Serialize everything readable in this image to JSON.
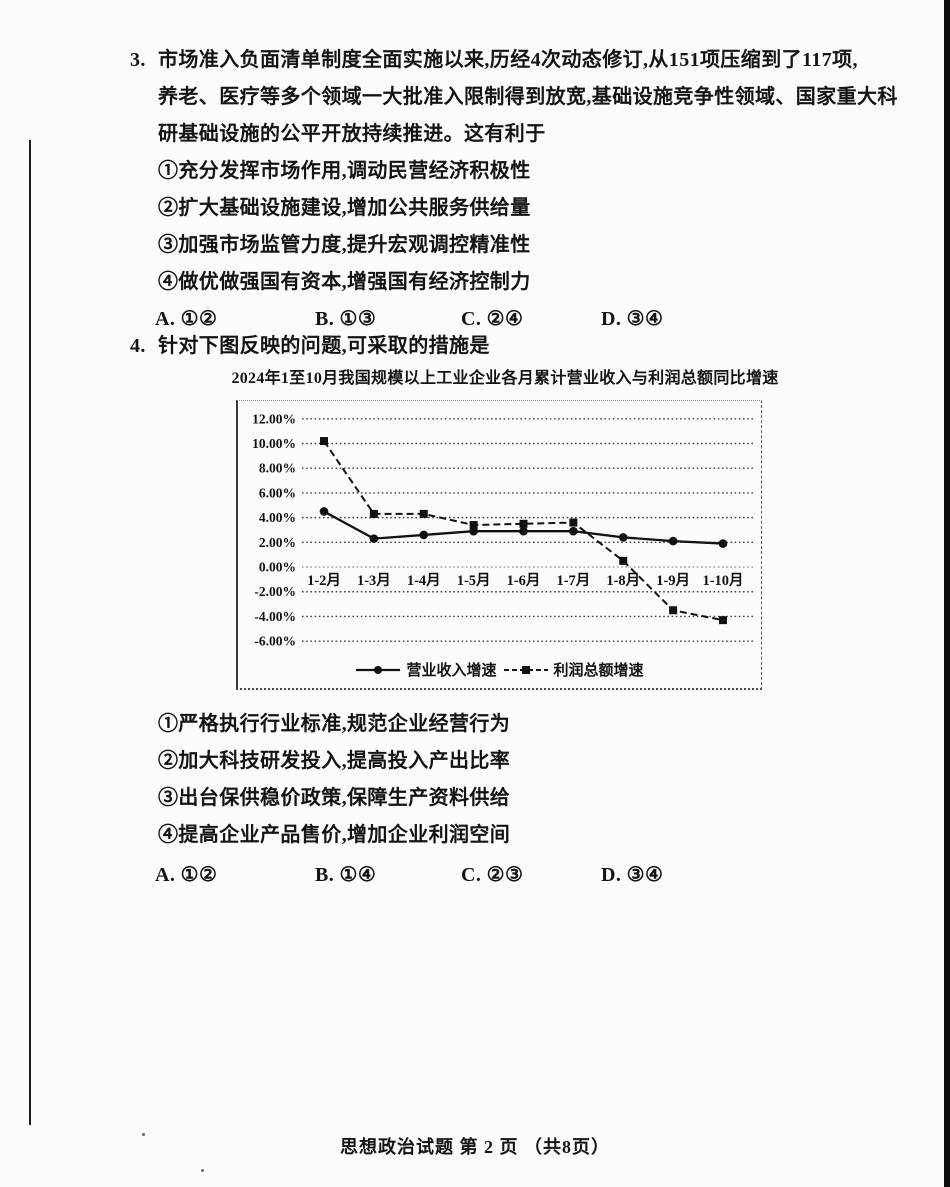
{
  "page": {
    "footer": "思想政治试题 第 2 页 （共8页）"
  },
  "questions": [
    {
      "number": "3.",
      "stem_lines": [
        "市场准入负面清单制度全面实施以来,历经4次动态修订,从151项压缩到了117项,",
        "养老、医疗等多个领域一大批准入限制得到放宽,基础设施竞争性领域、国家重大科",
        "研基础设施的公平开放持续推进。这有利于"
      ],
      "statements": [
        "①充分发挥市场作用,调动民营经济积极性",
        "②扩大基础设施建设,增加公共服务供给量",
        "③加强市场监管力度,提升宏观调控精准性",
        "④做优做强国有资本,增强国有经济控制力"
      ],
      "options": [
        "A. ①②",
        "B. ①③",
        "C. ②④",
        "D. ③④"
      ]
    },
    {
      "number": "4.",
      "stem_lines": [
        "针对下图反映的问题,可采取的措施是"
      ],
      "statements": [
        "①严格执行行业标准,规范企业经营行为",
        "②加大科技研发投入,提高投入产出比率",
        "③出台保供稳价政策,保障生产资料供给",
        "④提高企业产品售价,增加企业利润空间"
      ],
      "options": [
        "A. ①②",
        "B. ①④",
        "C. ②③",
        "D. ③④"
      ]
    }
  ],
  "chart_data": {
    "type": "line",
    "title": "2024年1至10月我国规模以上工业企业各月累计营业收入与利润总额同比增速",
    "categories": [
      "1-2月",
      "1-3月",
      "1-4月",
      "1-5月",
      "1-6月",
      "1-7月",
      "1-8月",
      "1-9月",
      "1-10月"
    ],
    "series": [
      {
        "name": "营业收入增速",
        "style": "solid",
        "marker": "circle",
        "values": [
          4.5,
          2.3,
          2.6,
          2.9,
          2.9,
          2.9,
          2.4,
          2.1,
          1.9
        ]
      },
      {
        "name": "利润总额增速",
        "style": "dashed",
        "marker": "square",
        "values": [
          10.2,
          4.3,
          4.3,
          3.4,
          3.5,
          3.6,
          0.5,
          -3.5,
          -4.3
        ]
      }
    ],
    "ylim": [
      -6,
      12
    ],
    "ytick_step": 2,
    "ytick_labels": [
      "12.00%",
      "10.00%",
      "8.00%",
      "6.00%",
      "4.00%",
      "2.00%",
      "0.00%",
      "-2.00%",
      "-4.00%",
      "-6.00%"
    ],
    "grid": true,
    "legend_position": "bottom",
    "line_color": "#111111"
  }
}
